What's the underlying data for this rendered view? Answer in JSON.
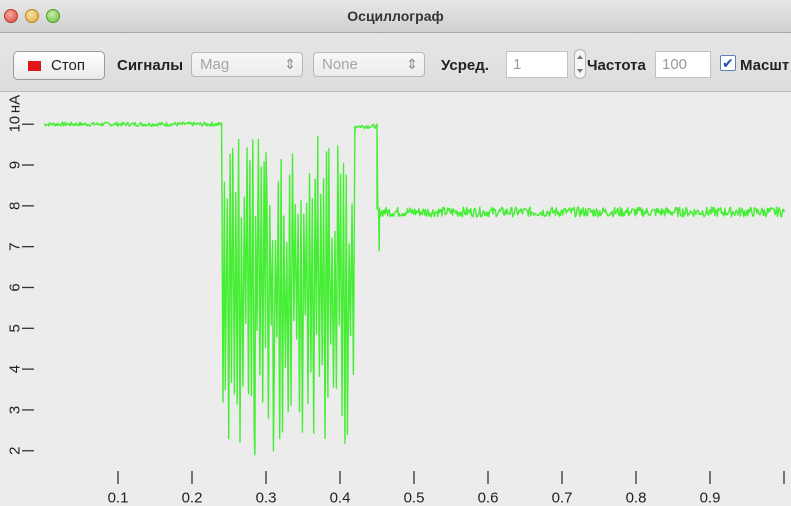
{
  "window": {
    "title": "Осциллограф"
  },
  "toolbar": {
    "stop_label": "Стоп",
    "signals_label": "Сигналы",
    "signal_select_1": "Mag",
    "signal_select_2": "None",
    "averaging_label": "Усред.",
    "averaging_value": "1",
    "frequency_label": "Частота",
    "frequency_value": "100",
    "scale_label": "Масшт",
    "scale_checked": true
  },
  "colors": {
    "trace": "#44ee33",
    "stop_indicator": "#e01515",
    "plot_background": "#ececec"
  },
  "chart_data": {
    "type": "line",
    "ylabel": "нА",
    "xlabel": "",
    "x_ticks": [
      "0.1",
      "0.2",
      "0.3",
      "0.4",
      "0.5",
      "0.6",
      "0.7",
      "0.8",
      "0.9",
      ""
    ],
    "y_ticks": [
      "2",
      "3",
      "4",
      "5",
      "6",
      "7",
      "8",
      "9",
      "10"
    ],
    "xlim": [
      0.0,
      1.0
    ],
    "ylim": [
      1.7,
      10.25
    ],
    "grid": false,
    "segments": [
      {
        "x": [
          0.0,
          0.24
        ],
        "level": 10.0,
        "noise": 0.05,
        "style": "flat"
      },
      {
        "x": [
          0.24,
          0.42
        ],
        "min": 2.0,
        "max": 9.7,
        "style": "oscillating"
      },
      {
        "x": [
          0.42,
          0.45
        ],
        "level": 9.95,
        "noise": 0.05,
        "style": "flat"
      },
      {
        "x": [
          0.45,
          1.0
        ],
        "level": 7.85,
        "noise": 0.12,
        "style": "flat"
      }
    ],
    "key_points": [
      {
        "x": 0.0,
        "y": 10.0
      },
      {
        "x": 0.24,
        "y": 10.0
      },
      {
        "x": 0.245,
        "y": 3.5
      },
      {
        "x": 0.255,
        "y": 9.4
      },
      {
        "x": 0.285,
        "y": 1.9
      },
      {
        "x": 0.3,
        "y": 9.3
      },
      {
        "x": 0.31,
        "y": 2.0
      },
      {
        "x": 0.37,
        "y": 9.7
      },
      {
        "x": 0.385,
        "y": 9.4
      },
      {
        "x": 0.41,
        "y": 2.4
      },
      {
        "x": 0.42,
        "y": 9.8
      },
      {
        "x": 0.45,
        "y": 10.0
      },
      {
        "x": 0.453,
        "y": 6.9
      },
      {
        "x": 0.46,
        "y": 7.9
      },
      {
        "x": 1.0,
        "y": 7.85
      }
    ]
  }
}
